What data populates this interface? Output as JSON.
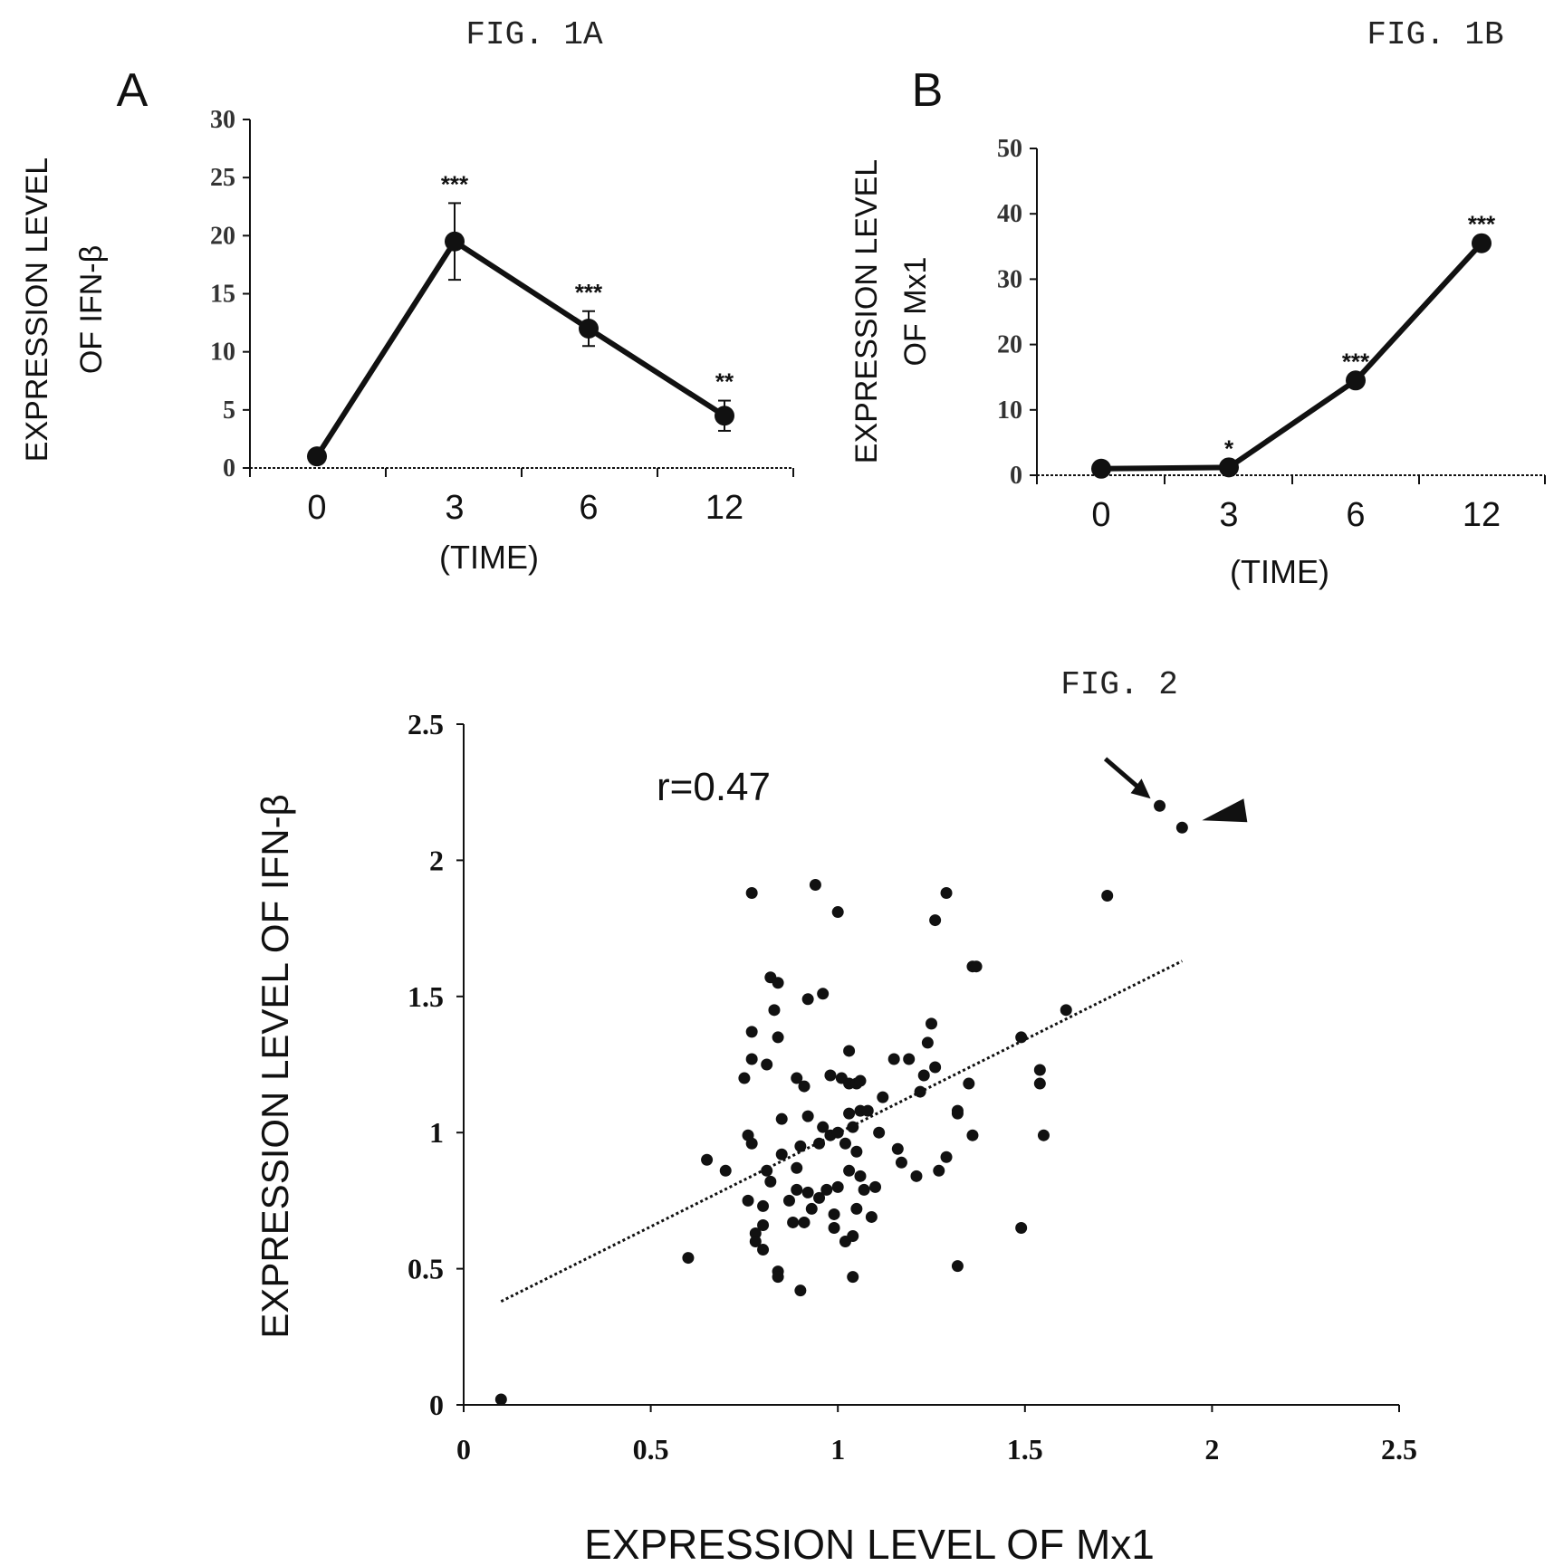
{
  "chart_data": [
    {
      "id": "fig1a",
      "type": "line",
      "figure_label": "FIG. 1A",
      "panel_label": "A",
      "ylabel_lines": [
        "EXPRESSION LEVEL",
        "OF IFN-β"
      ],
      "xlabel": "(TIME)",
      "categories": [
        "0",
        "3",
        "6",
        "12"
      ],
      "values": [
        1,
        19.5,
        12,
        4.5
      ],
      "errors": [
        0,
        3.3,
        1.5,
        1.3
      ],
      "significance": [
        "",
        "***",
        "***",
        "**"
      ],
      "ylim": [
        0,
        30
      ],
      "yticks": [
        "0",
        "5",
        "10",
        "15",
        "20",
        "25",
        "30"
      ]
    },
    {
      "id": "fig1b",
      "type": "line",
      "figure_label": "FIG. 1B",
      "panel_label": "B",
      "ylabel_lines": [
        "EXPRESSION LEVEL",
        "OF Mx1"
      ],
      "xlabel": "(TIME)",
      "categories": [
        "0",
        "3",
        "6",
        "12"
      ],
      "values": [
        1,
        1.2,
        14.5,
        35.5
      ],
      "errors": [
        0,
        0,
        0,
        0
      ],
      "significance": [
        "",
        "*",
        "***",
        "***"
      ],
      "ylim": [
        0,
        50
      ],
      "yticks": [
        "0",
        "10",
        "20",
        "30",
        "40",
        "50"
      ]
    },
    {
      "id": "fig2",
      "type": "scatter",
      "figure_label": "FIG. 2",
      "xlabel": "EXPRESSION LEVEL OF Mx1",
      "ylabel": "EXPRESSION LEVEL OF IFN-β",
      "annotation": "r=0.47",
      "xlim": [
        0,
        2.5
      ],
      "ylim": [
        0,
        2.5
      ],
      "xticks": [
        "0",
        "0.5",
        "1",
        "1.5",
        "2",
        "2.5"
      ],
      "yticks": [
        "0",
        "0.5",
        "1",
        "1.5",
        "2",
        "2.5"
      ],
      "trendline": {
        "x": [
          0.1,
          1.92
        ],
        "y": [
          0.38,
          1.63
        ]
      },
      "arrow_point": [
        1.86,
        2.2
      ],
      "arrowhead_point": [
        1.92,
        2.12
      ],
      "points": [
        [
          0.1,
          0.02
        ],
        [
          0.6,
          0.54
        ],
        [
          0.65,
          0.9
        ],
        [
          0.7,
          0.86
        ],
        [
          0.75,
          1.2
        ],
        [
          0.76,
          0.99
        ],
        [
          0.76,
          0.75
        ],
        [
          0.77,
          1.88
        ],
        [
          0.77,
          1.37
        ],
        [
          0.77,
          1.27
        ],
        [
          0.77,
          0.96
        ],
        [
          0.78,
          0.63
        ],
        [
          0.78,
          0.6
        ],
        [
          0.8,
          0.66
        ],
        [
          0.8,
          0.57
        ],
        [
          0.8,
          0.73
        ],
        [
          0.81,
          1.25
        ],
        [
          0.81,
          0.86
        ],
        [
          0.82,
          1.57
        ],
        [
          0.82,
          0.82
        ],
        [
          0.83,
          1.45
        ],
        [
          0.84,
          1.55
        ],
        [
          0.84,
          1.35
        ],
        [
          0.84,
          0.49
        ],
        [
          0.84,
          0.47
        ],
        [
          0.85,
          1.05
        ],
        [
          0.85,
          0.92
        ],
        [
          0.87,
          0.75
        ],
        [
          0.88,
          0.67
        ],
        [
          0.89,
          1.2
        ],
        [
          0.89,
          0.87
        ],
        [
          0.89,
          0.79
        ],
        [
          0.9,
          0.42
        ],
        [
          0.9,
          0.95
        ],
        [
          0.91,
          1.17
        ],
        [
          0.91,
          0.67
        ],
        [
          0.92,
          1.49
        ],
        [
          0.92,
          1.06
        ],
        [
          0.92,
          0.78
        ],
        [
          0.93,
          0.72
        ],
        [
          0.94,
          1.91
        ],
        [
          0.95,
          0.96
        ],
        [
          0.95,
          0.76
        ],
        [
          0.96,
          1.51
        ],
        [
          0.96,
          1.02
        ],
        [
          0.97,
          0.79
        ],
        [
          0.98,
          1.21
        ],
        [
          0.98,
          0.99
        ],
        [
          0.99,
          0.7
        ],
        [
          0.99,
          0.65
        ],
        [
          1.0,
          1.81
        ],
        [
          1.0,
          1.0
        ],
        [
          1.0,
          0.8
        ],
        [
          1.01,
          1.2
        ],
        [
          1.02,
          0.96
        ],
        [
          1.02,
          0.6
        ],
        [
          1.03,
          1.3
        ],
        [
          1.03,
          1.18
        ],
        [
          1.03,
          1.07
        ],
        [
          1.03,
          0.86
        ],
        [
          1.04,
          0.62
        ],
        [
          1.04,
          0.47
        ],
        [
          1.04,
          1.02
        ],
        [
          1.05,
          1.18
        ],
        [
          1.05,
          0.93
        ],
        [
          1.05,
          0.72
        ],
        [
          1.06,
          1.19
        ],
        [
          1.06,
          1.08
        ],
        [
          1.06,
          0.84
        ],
        [
          1.07,
          0.79
        ],
        [
          1.08,
          1.08
        ],
        [
          1.09,
          0.69
        ],
        [
          1.1,
          0.8
        ],
        [
          1.11,
          1.0
        ],
        [
          1.12,
          1.13
        ],
        [
          1.15,
          1.27
        ],
        [
          1.16,
          0.94
        ],
        [
          1.17,
          0.89
        ],
        [
          1.19,
          1.27
        ],
        [
          1.21,
          0.84
        ],
        [
          1.22,
          1.15
        ],
        [
          1.23,
          1.21
        ],
        [
          1.24,
          1.33
        ],
        [
          1.25,
          1.4
        ],
        [
          1.26,
          1.24
        ],
        [
          1.26,
          1.78
        ],
        [
          1.27,
          0.86
        ],
        [
          1.29,
          1.88
        ],
        [
          1.29,
          0.91
        ],
        [
          1.32,
          1.07
        ],
        [
          1.32,
          1.08
        ],
        [
          1.32,
          0.51
        ],
        [
          1.35,
          1.18
        ],
        [
          1.36,
          1.61
        ],
        [
          1.36,
          0.99
        ],
        [
          1.37,
          1.61
        ],
        [
          1.49,
          0.65
        ],
        [
          1.49,
          1.35
        ],
        [
          1.54,
          1.23
        ],
        [
          1.54,
          1.18
        ],
        [
          1.55,
          0.99
        ],
        [
          1.61,
          1.45
        ],
        [
          1.72,
          1.87
        ],
        [
          1.86,
          2.2
        ],
        [
          1.92,
          2.12
        ]
      ]
    }
  ]
}
